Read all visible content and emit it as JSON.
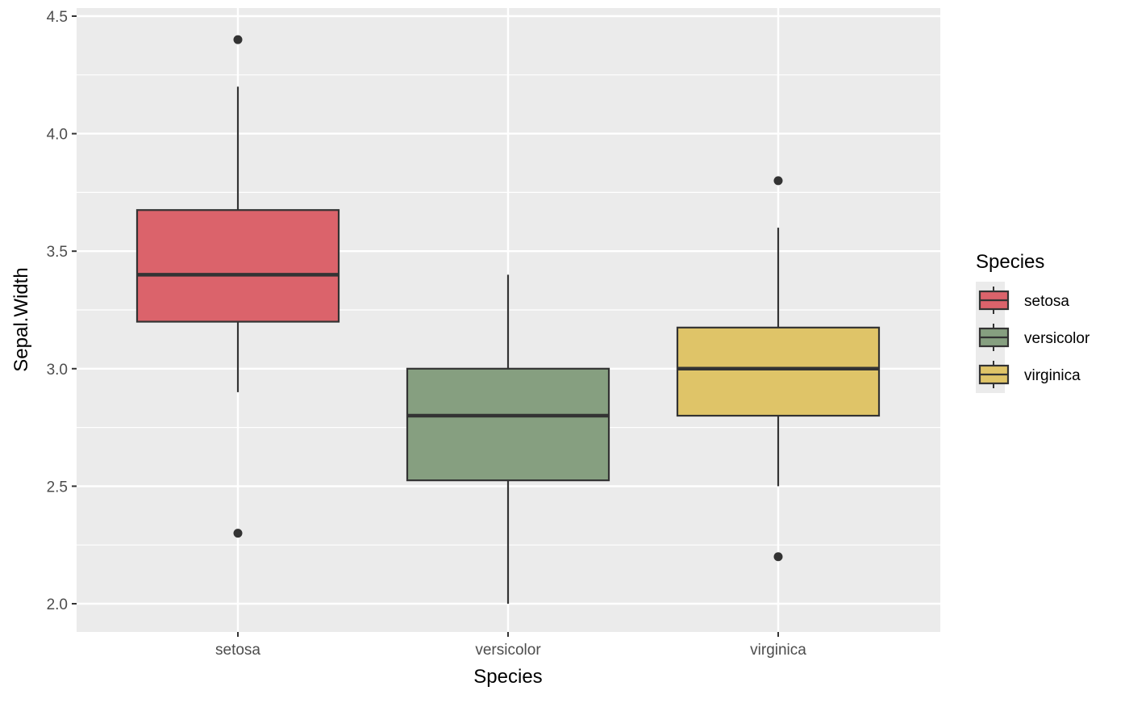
{
  "chart_data": {
    "type": "boxplot",
    "title": "",
    "xlabel": "Species",
    "ylabel": "Sepal.Width",
    "ylim": [
      1.875,
      4.55
    ],
    "yticks": [
      "2.0",
      "2.5",
      "3.0",
      "3.5",
      "4.0",
      "4.5"
    ],
    "grid": true,
    "legend": {
      "title": "Species",
      "position": "right"
    },
    "categories": [
      "setosa",
      "versicolor",
      "virginica"
    ],
    "series": [
      {
        "name": "setosa",
        "color": "#DB636B",
        "whisker_low": 2.9,
        "q1": 3.2,
        "median": 3.4,
        "q3": 3.675,
        "whisker_high": 4.2,
        "outliers": [
          4.4,
          2.3
        ]
      },
      {
        "name": "versicolor",
        "color": "#869F80",
        "whisker_low": 2.0,
        "q1": 2.525,
        "median": 2.8,
        "q3": 3.0,
        "whisker_high": 3.4,
        "outliers": []
      },
      {
        "name": "virginica",
        "color": "#DFC468",
        "whisker_low": 2.5,
        "q1": 2.8,
        "median": 3.0,
        "q3": 3.175,
        "whisker_high": 3.6,
        "outliers": [
          3.8,
          2.2
        ]
      }
    ]
  }
}
